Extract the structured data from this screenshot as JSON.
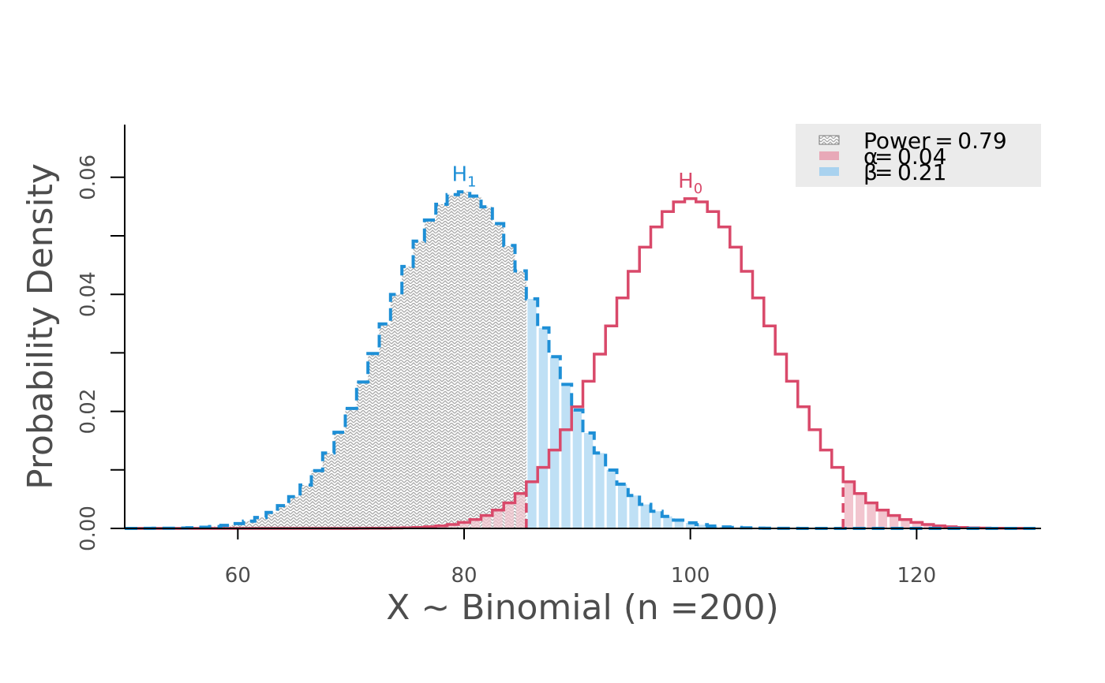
{
  "chart_data": {
    "type": "bar",
    "title": "",
    "xlabel": "X ~ Binomial (n =200)",
    "ylabel": "Probability Density",
    "xlim": [
      50,
      131
    ],
    "ylim": [
      0,
      0.069
    ],
    "x_ticks": [
      60,
      80,
      100,
      120
    ],
    "y_ticks": [
      0,
      0.01,
      0.02,
      0.03,
      0.04,
      0.05,
      0.06
    ],
    "y_tick_labels": [
      "0.00",
      "0.02",
      "0.04",
      "0.06"
    ],
    "y_tick_labeled_values": [
      0,
      0.02,
      0.04,
      0.06
    ],
    "grid": false,
    "legend_position": "top-right",
    "legend_background": "#ebebeb",
    "n": 200,
    "critical_lower": 85,
    "critical_upper": 114,
    "series": [
      {
        "name": "H₀",
        "label_main": "H",
        "label_sub": "0",
        "p": 0.5,
        "color": "#d9496a",
        "line_style": "solid"
      },
      {
        "name": "H₁",
        "label_main": "H",
        "label_sub": "1",
        "p": 0.4,
        "color": "#1e8fd6",
        "line_style": "dashed"
      }
    ],
    "legend": [
      {
        "symbol": " ",
        "label": "Power = 0.79",
        "fill": "hatch",
        "color": "#9e9e9e"
      },
      {
        "symbol": "α",
        "label": "= 0.04",
        "fill": "solid",
        "color": "#e8a9b8"
      },
      {
        "symbol": "β",
        "label": "= 0.21",
        "fill": "solid",
        "color": "#a9d2ef"
      }
    ],
    "colors": {
      "alpha_fill": "#f2c5cf",
      "beta_fill": "#bfe0f5",
      "power_hatch": "#a8a8a8",
      "axis": "#000000"
    }
  }
}
